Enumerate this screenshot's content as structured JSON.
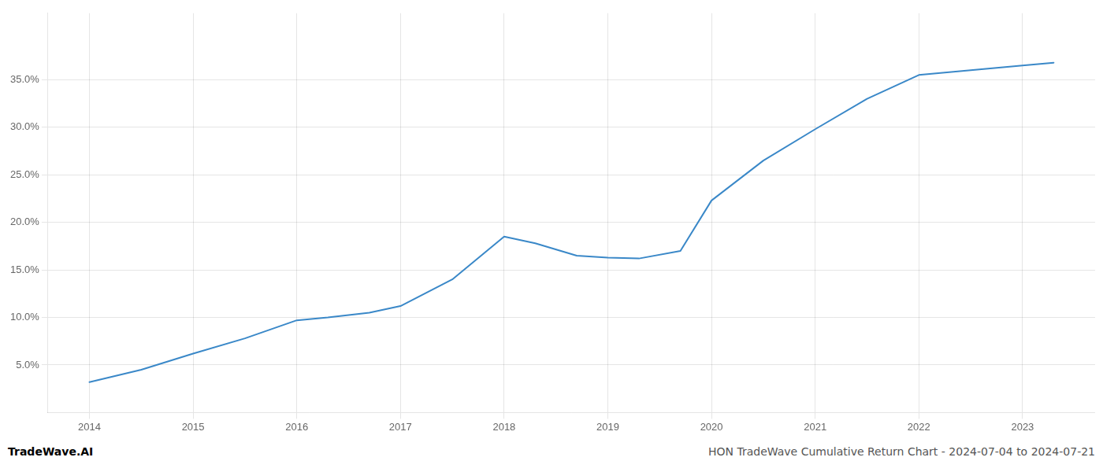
{
  "chart_data": {
    "type": "line",
    "title": "HON TradeWave Cumulative Return Chart - 2024-07-04 to 2024-07-21",
    "annotations": [
      "TradeWave.AI"
    ],
    "x": [
      2014,
      2014.5,
      2015,
      2015.5,
      2016,
      2016.3,
      2016.7,
      2017,
      2017.5,
      2018,
      2018.3,
      2018.7,
      2019,
      2019.3,
      2019.7,
      2020,
      2020.5,
      2021,
      2021.5,
      2022,
      2022.5,
      2023,
      2023.3
    ],
    "values": [
      3.2,
      4.5,
      6.2,
      7.8,
      9.7,
      10.0,
      10.5,
      11.2,
      14.0,
      18.5,
      17.8,
      16.5,
      16.3,
      16.2,
      17.0,
      22.3,
      26.5,
      29.8,
      33.0,
      35.5,
      36.0,
      36.5,
      36.8
    ],
    "color": "#3a88c8",
    "xlim": [
      2013.6,
      2023.7
    ],
    "ylim": [
      0,
      42
    ],
    "xticks": [
      2014,
      2015,
      2016,
      2017,
      2018,
      2019,
      2020,
      2021,
      2022,
      2023
    ],
    "yticks": [
      {
        "value": 5.0,
        "label": "5.0%"
      },
      {
        "value": 10.0,
        "label": "10.0%"
      },
      {
        "value": 15.0,
        "label": "15.0%"
      },
      {
        "value": 20.0,
        "label": "20.0%"
      },
      {
        "value": 25.0,
        "label": "25.0%"
      },
      {
        "value": 30.0,
        "label": "30.0%"
      },
      {
        "value": 35.0,
        "label": "35.0%"
      }
    ],
    "grid": true
  }
}
